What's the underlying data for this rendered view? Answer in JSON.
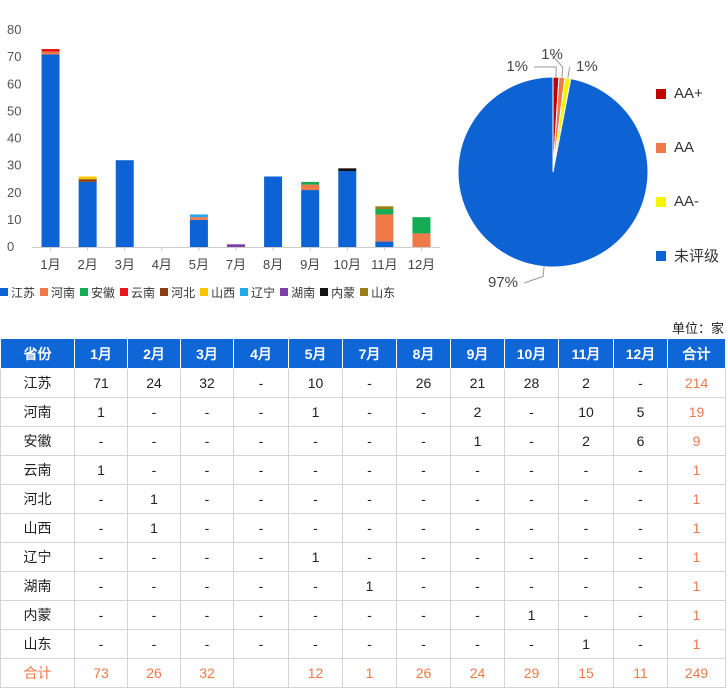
{
  "chart_data": [
    {
      "type": "bar",
      "stacked": true,
      "categories": [
        "1月",
        "2月",
        "3月",
        "4月",
        "5月",
        "7月",
        "8月",
        "9月",
        "10月",
        "11月",
        "12月"
      ],
      "yticks": [
        "0",
        "10",
        "20",
        "30",
        "40",
        "50",
        "60",
        "70",
        "80"
      ],
      "ylim": [
        0,
        80
      ],
      "grid": false,
      "legend_position": "bottom",
      "series": [
        {
          "name": "江苏",
          "color": "#0d63d4",
          "values": [
            71,
            24,
            32,
            0,
            10,
            0,
            26,
            21,
            28,
            2,
            0
          ]
        },
        {
          "name": "河南",
          "color": "#f0794a",
          "values": [
            1,
            0,
            0,
            0,
            1,
            0,
            0,
            2,
            0,
            10,
            5
          ]
        },
        {
          "name": "安徽",
          "color": "#13ac55",
          "values": [
            0,
            0,
            0,
            0,
            0,
            0,
            0,
            1,
            0,
            2,
            6
          ]
        },
        {
          "name": "云南",
          "color": "#e8161b",
          "values": [
            1,
            0,
            0,
            0,
            0,
            0,
            0,
            0,
            0,
            0,
            0
          ]
        },
        {
          "name": "河北",
          "color": "#8a3e12",
          "values": [
            0,
            1,
            0,
            0,
            0,
            0,
            0,
            0,
            0,
            0,
            0
          ]
        },
        {
          "name": "山西",
          "color": "#f7c600",
          "values": [
            0,
            1,
            0,
            0,
            0,
            0,
            0,
            0,
            0,
            0,
            0
          ]
        },
        {
          "name": "辽宁",
          "color": "#21a9ec",
          "values": [
            0,
            0,
            0,
            0,
            1,
            0,
            0,
            0,
            0,
            0,
            0
          ]
        },
        {
          "name": "湖南",
          "color": "#7f3fa8",
          "values": [
            0,
            0,
            0,
            0,
            0,
            1,
            0,
            0,
            0,
            0,
            0
          ]
        },
        {
          "name": "内蒙",
          "color": "#111111",
          "values": [
            0,
            0,
            0,
            0,
            0,
            0,
            0,
            0,
            1,
            0,
            0
          ]
        },
        {
          "name": "山东",
          "color": "#9c7d16",
          "values": [
            0,
            0,
            0,
            0,
            0,
            0,
            0,
            0,
            0,
            1,
            0
          ]
        }
      ]
    },
    {
      "type": "pie",
      "slices": [
        {
          "name": "AA+",
          "value": 1,
          "label": "1%",
          "color": "#c00000"
        },
        {
          "name": "AA",
          "value": 1,
          "label": "1%",
          "color": "#f0794a"
        },
        {
          "name": "AA-",
          "value": 1,
          "label": "1%",
          "color": "#f5f500"
        },
        {
          "name": "未评级",
          "value": 97,
          "label": "97%",
          "color": "#0d63d4"
        }
      ],
      "legend_position": "right"
    }
  ],
  "unit_label": "单位：家",
  "table": {
    "header": [
      "省份",
      "1月",
      "2月",
      "3月",
      "4月",
      "5月",
      "7月",
      "8月",
      "9月",
      "10月",
      "11月",
      "12月",
      "合计"
    ],
    "rows": [
      [
        "江苏",
        "71",
        "24",
        "32",
        "-",
        "10",
        "-",
        "26",
        "21",
        "28",
        "2",
        "-",
        "214"
      ],
      [
        "河南",
        "1",
        "-",
        "-",
        "-",
        "1",
        "-",
        "-",
        "2",
        "-",
        "10",
        "5",
        "19"
      ],
      [
        "安徽",
        "-",
        "-",
        "-",
        "-",
        "-",
        "-",
        "-",
        "1",
        "-",
        "2",
        "6",
        "9"
      ],
      [
        "云南",
        "1",
        "-",
        "-",
        "-",
        "-",
        "-",
        "-",
        "-",
        "-",
        "-",
        "-",
        "1"
      ],
      [
        "河北",
        "-",
        "1",
        "-",
        "-",
        "-",
        "-",
        "-",
        "-",
        "-",
        "-",
        "-",
        "1"
      ],
      [
        "山西",
        "-",
        "1",
        "-",
        "-",
        "-",
        "-",
        "-",
        "-",
        "-",
        "-",
        "-",
        "1"
      ],
      [
        "辽宁",
        "-",
        "-",
        "-",
        "-",
        "1",
        "-",
        "-",
        "-",
        "-",
        "-",
        "-",
        "1"
      ],
      [
        "湖南",
        "-",
        "-",
        "-",
        "-",
        "-",
        "1",
        "-",
        "-",
        "-",
        "-",
        "-",
        "1"
      ],
      [
        "内蒙",
        "-",
        "-",
        "-",
        "-",
        "-",
        "-",
        "-",
        "-",
        "1",
        "-",
        "-",
        "1"
      ],
      [
        "山东",
        "-",
        "-",
        "-",
        "-",
        "-",
        "-",
        "-",
        "-",
        "-",
        "1",
        "-",
        "1"
      ]
    ],
    "total_row": [
      "合计",
      "73",
      "26",
      "32",
      "",
      "12",
      "1",
      "26",
      "24",
      "29",
      "15",
      "11",
      "249"
    ]
  },
  "colors": {
    "header_bg": "#0f66d6",
    "total_text": "#f0794a"
  }
}
